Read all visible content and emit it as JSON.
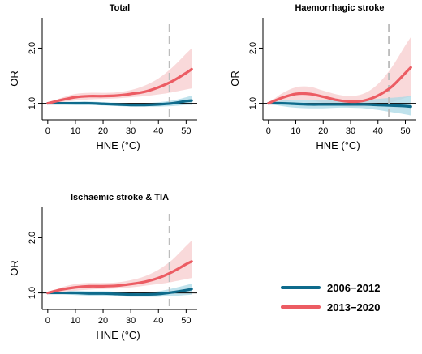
{
  "colors": {
    "series_2006": "#0e6b8c",
    "series_2006_band": "#a9d8e6",
    "series_2013": "#ec5c63",
    "series_2013_band": "#f7c9cb",
    "threshold_line": "#bdbdbd",
    "reference_line": "#000000"
  },
  "legend": {
    "placement": "bottom-right",
    "items": [
      {
        "label": "2006−2012",
        "color": "#0e6b8c"
      },
      {
        "label": "2013−2020",
        "color": "#ec5c63"
      }
    ]
  },
  "chart_data": [
    {
      "type": "line",
      "title": "Total",
      "xlabel": "HNE (°C)",
      "ylabel": "OR",
      "xlim": [
        -2,
        54
      ],
      "ylim": [
        0.7,
        2.55
      ],
      "xticks": [
        0,
        10,
        20,
        30,
        40,
        50
      ],
      "xtick_labels": [
        "0",
        "10",
        "20",
        "30",
        "40",
        "50"
      ],
      "yticks": [
        1.0,
        2.0
      ],
      "ytick_labels": [
        "1.0",
        "2.0"
      ],
      "reference_y": 1.0,
      "threshold_x": 44,
      "x": [
        0,
        5,
        10,
        15,
        20,
        25,
        30,
        35,
        40,
        45,
        50,
        52
      ],
      "series": [
        {
          "name": "2006−2012",
          "values": [
            1.0,
            1.0,
            1.0,
            1.0,
            0.99,
            0.98,
            0.97,
            0.97,
            0.98,
            1.0,
            1.04,
            1.05
          ],
          "lower": [
            1.0,
            0.98,
            0.97,
            0.97,
            0.96,
            0.95,
            0.94,
            0.94,
            0.94,
            0.95,
            0.97,
            0.97
          ],
          "upper": [
            1.0,
            1.02,
            1.03,
            1.03,
            1.02,
            1.01,
            1.0,
            1.0,
            1.02,
            1.05,
            1.11,
            1.14
          ]
        },
        {
          "name": "2013−2020",
          "values": [
            1.0,
            1.06,
            1.11,
            1.13,
            1.13,
            1.14,
            1.17,
            1.21,
            1.29,
            1.4,
            1.55,
            1.62
          ],
          "lower": [
            1.0,
            1.02,
            1.05,
            1.07,
            1.08,
            1.09,
            1.11,
            1.13,
            1.16,
            1.2,
            1.25,
            1.27
          ],
          "upper": [
            1.0,
            1.1,
            1.17,
            1.19,
            1.19,
            1.2,
            1.24,
            1.32,
            1.45,
            1.65,
            1.9,
            2.0
          ]
        }
      ]
    },
    {
      "type": "line",
      "title": "Haemorrhagic stroke",
      "xlabel": "HNE (°C)",
      "ylabel": "OR",
      "xlim": [
        -2,
        54
      ],
      "ylim": [
        0.7,
        2.55
      ],
      "xticks": [
        0,
        10,
        20,
        30,
        40,
        50
      ],
      "xtick_labels": [
        "0",
        "10",
        "20",
        "30",
        "40",
        "50"
      ],
      "yticks": [
        1.0,
        2.0
      ],
      "ytick_labels": [
        "1.0",
        "2.0"
      ],
      "reference_y": 1.0,
      "threshold_x": 44,
      "x": [
        0,
        5,
        10,
        15,
        20,
        25,
        30,
        35,
        40,
        45,
        50,
        52
      ],
      "series": [
        {
          "name": "2006−2012",
          "values": [
            1.0,
            1.0,
            0.99,
            0.98,
            0.98,
            0.98,
            0.98,
            0.98,
            0.97,
            0.96,
            0.95,
            0.94
          ],
          "lower": [
            1.0,
            0.95,
            0.92,
            0.91,
            0.91,
            0.92,
            0.92,
            0.91,
            0.88,
            0.84,
            0.8,
            0.78
          ],
          "upper": [
            1.0,
            1.05,
            1.06,
            1.06,
            1.06,
            1.05,
            1.05,
            1.06,
            1.08,
            1.1,
            1.12,
            1.14
          ]
        },
        {
          "name": "2013−2020",
          "values": [
            1.0,
            1.1,
            1.17,
            1.17,
            1.12,
            1.06,
            1.03,
            1.05,
            1.14,
            1.3,
            1.55,
            1.65
          ],
          "lower": [
            1.0,
            1.02,
            1.06,
            1.06,
            1.01,
            0.96,
            0.93,
            0.94,
            0.97,
            1.02,
            1.1,
            1.12
          ],
          "upper": [
            1.0,
            1.18,
            1.29,
            1.3,
            1.23,
            1.16,
            1.13,
            1.18,
            1.35,
            1.65,
            2.05,
            2.2
          ]
        }
      ]
    },
    {
      "type": "line",
      "title": "Ischaemic stroke & TIA",
      "xlabel": "HNE (°C)",
      "ylabel": "OR",
      "xlim": [
        -2,
        54
      ],
      "ylim": [
        0.7,
        2.55
      ],
      "xticks": [
        0,
        10,
        20,
        30,
        40,
        50
      ],
      "xtick_labels": [
        "0",
        "10",
        "20",
        "30",
        "40",
        "50"
      ],
      "yticks": [
        1.0,
        2.0
      ],
      "ytick_labels": [
        "1.0",
        "2.0"
      ],
      "reference_y": 1.0,
      "threshold_x": 44,
      "x": [
        0,
        5,
        10,
        15,
        20,
        25,
        30,
        35,
        40,
        45,
        50,
        52
      ],
      "series": [
        {
          "name": "2006−2012",
          "values": [
            1.0,
            1.0,
            1.0,
            0.99,
            0.99,
            0.98,
            0.97,
            0.97,
            0.98,
            1.01,
            1.05,
            1.07
          ],
          "lower": [
            1.0,
            0.98,
            0.96,
            0.95,
            0.95,
            0.94,
            0.93,
            0.93,
            0.93,
            0.94,
            0.96,
            0.97
          ],
          "upper": [
            1.0,
            1.02,
            1.04,
            1.03,
            1.03,
            1.02,
            1.01,
            1.01,
            1.03,
            1.08,
            1.14,
            1.17
          ]
        },
        {
          "name": "2013−2020",
          "values": [
            1.0,
            1.06,
            1.1,
            1.12,
            1.12,
            1.13,
            1.16,
            1.2,
            1.27,
            1.38,
            1.52,
            1.57
          ],
          "lower": [
            1.0,
            1.02,
            1.04,
            1.06,
            1.07,
            1.08,
            1.1,
            1.13,
            1.16,
            1.2,
            1.25,
            1.27
          ],
          "upper": [
            1.0,
            1.1,
            1.16,
            1.18,
            1.18,
            1.19,
            1.23,
            1.3,
            1.42,
            1.6,
            1.85,
            1.95
          ]
        }
      ]
    }
  ]
}
